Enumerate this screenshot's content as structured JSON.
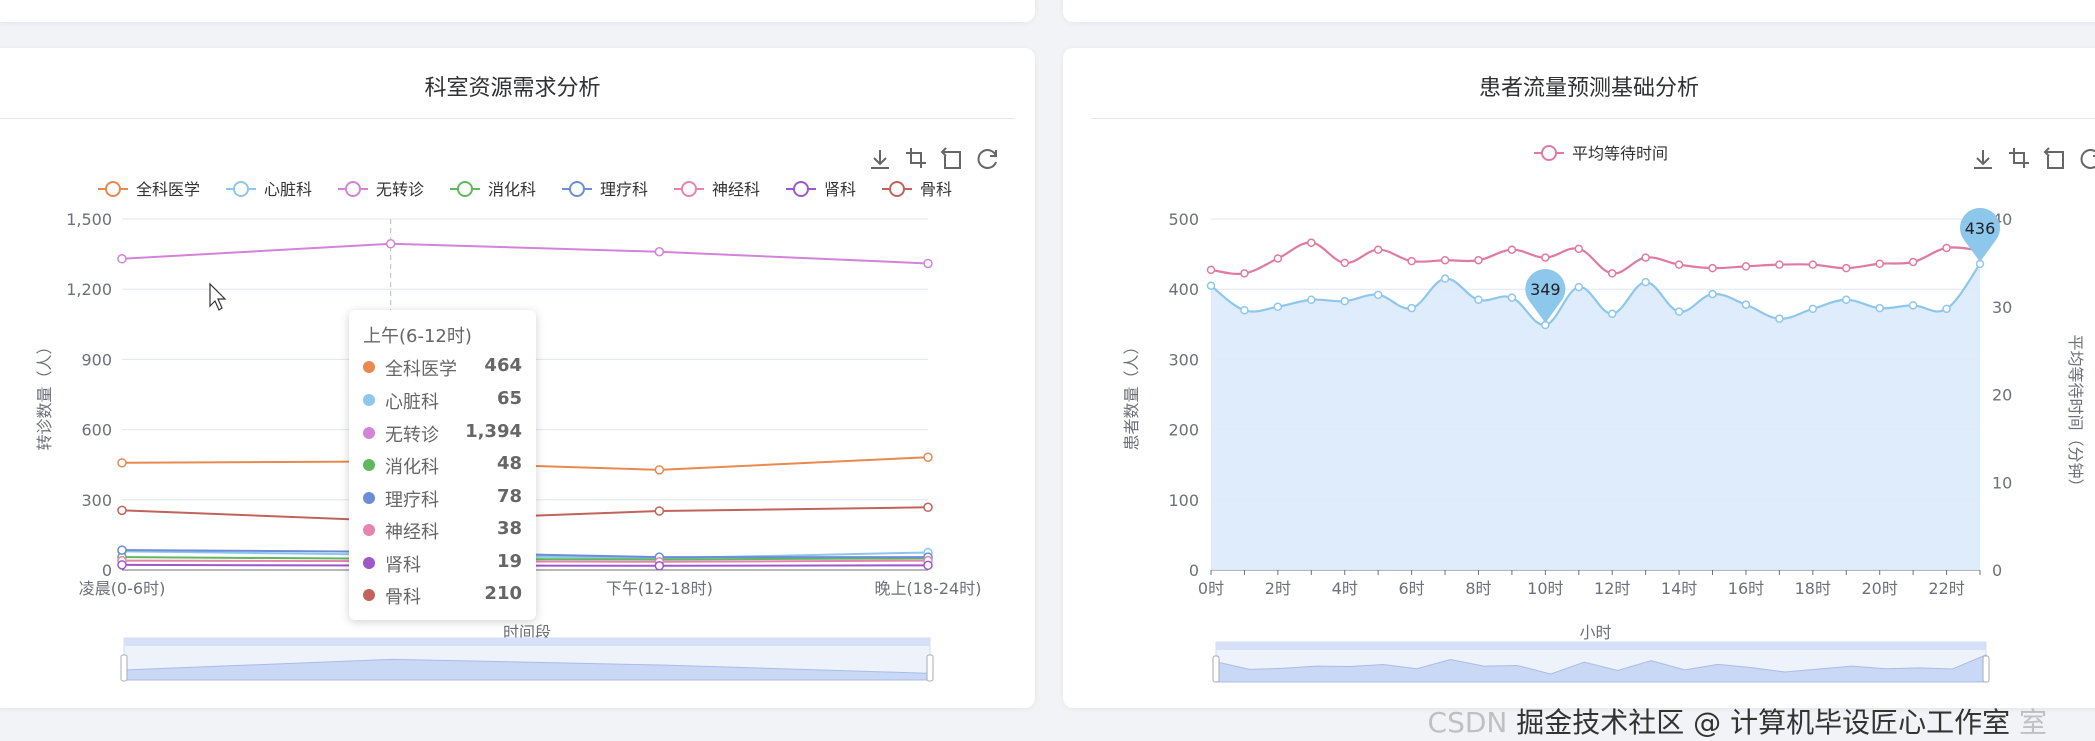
{
  "colors": {
    "general": "#e8894f",
    "cardio": "#8ec7ec",
    "notransfer": "#d383d8",
    "digestive": "#5fb85c",
    "physio": "#6b8ed6",
    "neuro": "#e584ad",
    "kidney": "#9e58c8",
    "bone": "#c0645a",
    "waitline": "#e07aa3",
    "patientline": "#8ec7ec",
    "patientarea": "#dbeafb"
  },
  "left_panel": {
    "title": "科室资源需求分析",
    "toolbox": [
      "download-icon",
      "zoom-icon",
      "zoom-back-icon",
      "restore-icon"
    ],
    "tooltip": {
      "title": "上午(6-12时)",
      "rows": [
        {
          "name": "全科医学",
          "value": "464"
        },
        {
          "name": "心脏科",
          "value": "65"
        },
        {
          "name": "无转诊",
          "value": "1,394"
        },
        {
          "name": "消化科",
          "value": "48"
        },
        {
          "name": "理疗科",
          "value": "78"
        },
        {
          "name": "神经科",
          "value": "38"
        },
        {
          "name": "肾科",
          "value": "19"
        },
        {
          "name": "骨科",
          "value": "210"
        }
      ]
    }
  },
  "right_panel": {
    "title": "患者流量预测基础分析",
    "toolbox": [
      "download-icon",
      "zoom-icon",
      "zoom-back-icon",
      "restore-icon"
    ]
  },
  "watermark": {
    "prefix": "CSDN",
    "text": "掘金技术社区 @ 计算机毕设匠心工作室",
    "tail": "室"
  },
  "chart_data": [
    {
      "type": "line",
      "title": "科室资源需求分析",
      "xlabel": "时间段",
      "ylabel": "转诊数量（人）",
      "categories": [
        "凌晨(0-6时)",
        "上午(6-12时)",
        "下午(12-18时)",
        "晚上(18-24时)"
      ],
      "x_tick_labels_visible": [
        "凌晨(0-6时)",
        "下午(12-18时)",
        "晚上(18-24时)"
      ],
      "y_ticks": [
        "0",
        "300",
        "600",
        "900",
        "1,200",
        "1,500"
      ],
      "ylim": [
        0,
        1500
      ],
      "legend_position": "top",
      "tooltip_active_category": "上午(6-12时)",
      "series": [
        {
          "name": "全科医学",
          "values": [
            458,
            464,
            428,
            482
          ]
        },
        {
          "name": "心脏科",
          "values": [
            80,
            65,
            50,
            75
          ]
        },
        {
          "name": "无转诊",
          "values": [
            1330,
            1394,
            1360,
            1310
          ]
        },
        {
          "name": "消化科",
          "values": [
            55,
            48,
            45,
            50
          ]
        },
        {
          "name": "理疗科",
          "values": [
            85,
            78,
            55,
            55
          ]
        },
        {
          "name": "神经科",
          "values": [
            40,
            38,
            35,
            40
          ]
        },
        {
          "name": "肾科",
          "values": [
            22,
            19,
            18,
            20
          ]
        },
        {
          "name": "骨科",
          "values": [
            255,
            210,
            252,
            268
          ]
        }
      ]
    },
    {
      "type": "line",
      "title": "患者流量预测基础分析",
      "xlabel": "小时",
      "ylabel": "患者数量（人）",
      "y2label": "平均等待时间（分钟）",
      "categories": [
        "0时",
        "1时",
        "2时",
        "3时",
        "4时",
        "5时",
        "6时",
        "7时",
        "8时",
        "9时",
        "10时",
        "11时",
        "12时",
        "13时",
        "14时",
        "15时",
        "16时",
        "17时",
        "18时",
        "19时",
        "20时",
        "21时",
        "22时",
        "23时"
      ],
      "x_tick_labels_visible": [
        "0时",
        "2时",
        "4时",
        "6时",
        "8时",
        "10时",
        "12时",
        "14时",
        "16时",
        "18时",
        "20时",
        "22时"
      ],
      "y_ticks": [
        "0",
        "100",
        "200",
        "300",
        "400",
        "500"
      ],
      "y2_ticks": [
        "0",
        "10",
        "20",
        "30",
        "40"
      ],
      "ylim": [
        0,
        500
      ],
      "y2lim": [
        0,
        40
      ],
      "legend_position": "top",
      "series": [
        {
          "name": "患者数量",
          "axis": "left",
          "area": true,
          "values": [
            405,
            370,
            375,
            385,
            383,
            392,
            373,
            415,
            385,
            388,
            349,
            403,
            365,
            410,
            368,
            393,
            378,
            358,
            372,
            385,
            373,
            377,
            372,
            436
          ]
        },
        {
          "name": "平均等待时间",
          "axis": "right",
          "values": [
            34.2,
            33.8,
            35.5,
            37.3,
            35.0,
            36.5,
            35.2,
            35.3,
            35.3,
            36.5,
            35.6,
            36.6,
            33.8,
            35.6,
            34.8,
            34.4,
            34.6,
            34.8,
            34.8,
            34.4,
            34.9,
            35.1,
            36.7,
            36.4
          ]
        }
      ],
      "markpoints": [
        {
          "series": "患者数量",
          "label": "349",
          "category": "10时",
          "value": 349
        },
        {
          "series": "患者数量",
          "label": "436",
          "category": "23时",
          "value": 436
        }
      ]
    }
  ]
}
